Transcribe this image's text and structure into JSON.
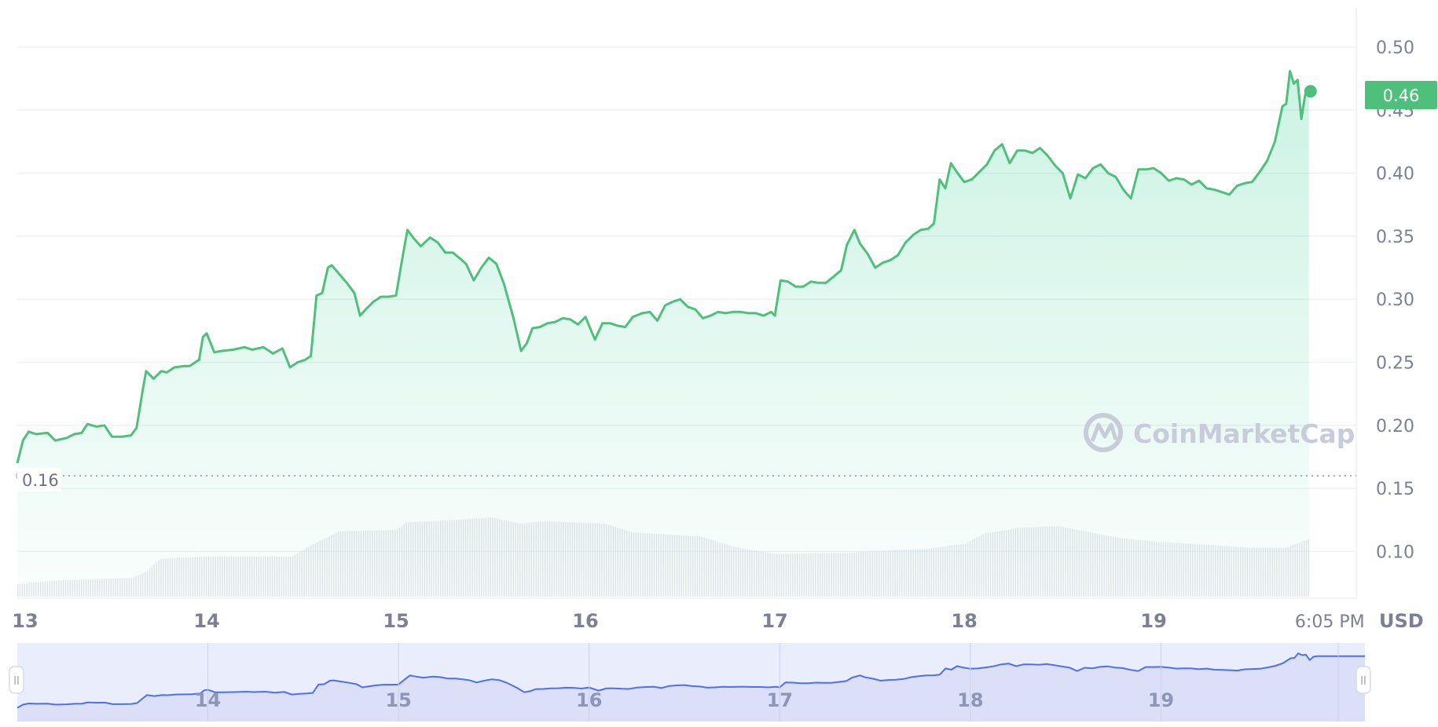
{
  "chart_data": {
    "type": "area",
    "currency": "USD",
    "current_price": "0.46",
    "base_price": "0.16",
    "watermark": "CoinMarketCap",
    "y_axis": {
      "min": 0.05,
      "max": 0.51,
      "ticks": [
        "0.50",
        "0.45",
        "0.40",
        "0.35",
        "0.30",
        "0.25",
        "0.20",
        "0.15",
        "0.10"
      ]
    },
    "x_axis": {
      "start": 13.0,
      "end": 20.07,
      "ticks": [
        {
          "value": 13,
          "label": "13"
        },
        {
          "value": 14,
          "label": "14"
        },
        {
          "value": 15,
          "label": "15"
        },
        {
          "value": 16,
          "label": "16"
        },
        {
          "value": 17,
          "label": "17"
        },
        {
          "value": 18,
          "label": "18"
        },
        {
          "value": 19,
          "label": "19"
        },
        {
          "value": 19.93,
          "label": "6:05 PM"
        }
      ]
    },
    "price": [
      [
        13.0,
        0.17
      ],
      [
        13.03,
        0.188
      ],
      [
        13.06,
        0.195
      ],
      [
        13.1,
        0.193
      ],
      [
        13.16,
        0.194
      ],
      [
        13.2,
        0.188
      ],
      [
        13.26,
        0.19
      ],
      [
        13.3,
        0.193
      ],
      [
        13.34,
        0.194
      ],
      [
        13.37,
        0.201
      ],
      [
        13.42,
        0.199
      ],
      [
        13.46,
        0.2
      ],
      [
        13.5,
        0.191
      ],
      [
        13.55,
        0.191
      ],
      [
        13.6,
        0.192
      ],
      [
        13.63,
        0.198
      ],
      [
        13.66,
        0.226
      ],
      [
        13.68,
        0.243
      ],
      [
        13.72,
        0.237
      ],
      [
        13.76,
        0.243
      ],
      [
        13.79,
        0.242
      ],
      [
        13.83,
        0.246
      ],
      [
        13.88,
        0.247
      ],
      [
        13.91,
        0.247
      ],
      [
        13.96,
        0.252
      ],
      [
        13.98,
        0.27
      ],
      [
        14.0,
        0.273
      ],
      [
        14.04,
        0.258
      ],
      [
        14.08,
        0.259
      ],
      [
        14.14,
        0.26
      ],
      [
        14.2,
        0.262
      ],
      [
        14.24,
        0.26
      ],
      [
        14.3,
        0.262
      ],
      [
        14.35,
        0.257
      ],
      [
        14.4,
        0.261
      ],
      [
        14.44,
        0.246
      ],
      [
        14.48,
        0.25
      ],
      [
        14.52,
        0.252
      ],
      [
        14.55,
        0.255
      ],
      [
        14.58,
        0.303
      ],
      [
        14.61,
        0.305
      ],
      [
        14.64,
        0.325
      ],
      [
        14.66,
        0.327
      ],
      [
        14.7,
        0.32
      ],
      [
        14.74,
        0.313
      ],
      [
        14.78,
        0.305
      ],
      [
        14.81,
        0.287
      ],
      [
        14.84,
        0.292
      ],
      [
        14.88,
        0.298
      ],
      [
        14.92,
        0.302
      ],
      [
        14.96,
        0.302
      ],
      [
        15.0,
        0.303
      ],
      [
        15.03,
        0.33
      ],
      [
        15.06,
        0.355
      ],
      [
        15.09,
        0.349
      ],
      [
        15.13,
        0.342
      ],
      [
        15.18,
        0.349
      ],
      [
        15.22,
        0.345
      ],
      [
        15.26,
        0.337
      ],
      [
        15.3,
        0.337
      ],
      [
        15.34,
        0.332
      ],
      [
        15.37,
        0.328
      ],
      [
        15.41,
        0.315
      ],
      [
        15.45,
        0.325
      ],
      [
        15.49,
        0.333
      ],
      [
        15.53,
        0.328
      ],
      [
        15.57,
        0.312
      ],
      [
        15.62,
        0.285
      ],
      [
        15.66,
        0.259
      ],
      [
        15.69,
        0.265
      ],
      [
        15.72,
        0.277
      ],
      [
        15.76,
        0.278
      ],
      [
        15.8,
        0.281
      ],
      [
        15.84,
        0.282
      ],
      [
        15.88,
        0.285
      ],
      [
        15.92,
        0.284
      ],
      [
        15.96,
        0.28
      ],
      [
        16.0,
        0.286
      ],
      [
        16.05,
        0.268
      ],
      [
        16.09,
        0.281
      ],
      [
        16.13,
        0.281
      ],
      [
        16.17,
        0.279
      ],
      [
        16.21,
        0.278
      ],
      [
        16.25,
        0.286
      ],
      [
        16.3,
        0.289
      ],
      [
        16.34,
        0.29
      ],
      [
        16.38,
        0.283
      ],
      [
        16.42,
        0.295
      ],
      [
        16.46,
        0.298
      ],
      [
        16.5,
        0.3
      ],
      [
        16.54,
        0.294
      ],
      [
        16.58,
        0.292
      ],
      [
        16.62,
        0.285
      ],
      [
        16.66,
        0.287
      ],
      [
        16.7,
        0.29
      ],
      [
        16.74,
        0.289
      ],
      [
        16.78,
        0.29
      ],
      [
        16.82,
        0.29
      ],
      [
        16.86,
        0.289
      ],
      [
        16.9,
        0.289
      ],
      [
        16.94,
        0.287
      ],
      [
        16.98,
        0.29
      ],
      [
        17.0,
        0.287
      ],
      [
        17.03,
        0.315
      ],
      [
        17.07,
        0.314
      ],
      [
        17.11,
        0.31
      ],
      [
        17.15,
        0.31
      ],
      [
        17.19,
        0.314
      ],
      [
        17.23,
        0.313
      ],
      [
        17.27,
        0.313
      ],
      [
        17.31,
        0.318
      ],
      [
        17.35,
        0.323
      ],
      [
        17.38,
        0.343
      ],
      [
        17.42,
        0.355
      ],
      [
        17.45,
        0.344
      ],
      [
        17.49,
        0.336
      ],
      [
        17.53,
        0.325
      ],
      [
        17.57,
        0.329
      ],
      [
        17.61,
        0.331
      ],
      [
        17.65,
        0.335
      ],
      [
        17.69,
        0.345
      ],
      [
        17.73,
        0.351
      ],
      [
        17.77,
        0.355
      ],
      [
        17.81,
        0.356
      ],
      [
        17.84,
        0.36
      ],
      [
        17.87,
        0.395
      ],
      [
        17.9,
        0.388
      ],
      [
        17.93,
        0.408
      ],
      [
        17.96,
        0.401
      ],
      [
        18.0,
        0.393
      ],
      [
        18.04,
        0.395
      ],
      [
        18.08,
        0.401
      ],
      [
        18.12,
        0.407
      ],
      [
        18.16,
        0.418
      ],
      [
        18.2,
        0.423
      ],
      [
        18.24,
        0.408
      ],
      [
        18.28,
        0.418
      ],
      [
        18.32,
        0.418
      ],
      [
        18.36,
        0.416
      ],
      [
        18.4,
        0.42
      ],
      [
        18.44,
        0.414
      ],
      [
        18.48,
        0.406
      ],
      [
        18.52,
        0.4
      ],
      [
        18.56,
        0.38
      ],
      [
        18.6,
        0.399
      ],
      [
        18.64,
        0.396
      ],
      [
        18.68,
        0.404
      ],
      [
        18.72,
        0.407
      ],
      [
        18.76,
        0.4
      ],
      [
        18.8,
        0.397
      ],
      [
        18.84,
        0.387
      ],
      [
        18.88,
        0.38
      ],
      [
        18.92,
        0.403
      ],
      [
        18.96,
        0.403
      ],
      [
        19.0,
        0.404
      ],
      [
        19.04,
        0.4
      ],
      [
        19.08,
        0.394
      ],
      [
        19.12,
        0.396
      ],
      [
        19.16,
        0.395
      ],
      [
        19.2,
        0.391
      ],
      [
        19.24,
        0.394
      ],
      [
        19.28,
        0.388
      ],
      [
        19.32,
        0.387
      ],
      [
        19.36,
        0.385
      ],
      [
        19.4,
        0.383
      ],
      [
        19.44,
        0.39
      ],
      [
        19.48,
        0.392
      ],
      [
        19.52,
        0.393
      ],
      [
        19.56,
        0.401
      ],
      [
        19.6,
        0.41
      ],
      [
        19.64,
        0.425
      ],
      [
        19.68,
        0.453
      ],
      [
        19.7,
        0.455
      ],
      [
        19.72,
        0.481
      ],
      [
        19.74,
        0.471
      ],
      [
        19.76,
        0.474
      ],
      [
        19.78,
        0.443
      ],
      [
        19.8,
        0.462
      ],
      [
        19.82,
        0.465
      ]
    ],
    "volume": [
      [
        13.0,
        0.074
      ],
      [
        13.2,
        0.077
      ],
      [
        13.4,
        0.078
      ],
      [
        13.6,
        0.079
      ],
      [
        13.68,
        0.084
      ],
      [
        13.75,
        0.094
      ],
      [
        14.0,
        0.096
      ],
      [
        14.2,
        0.096
      ],
      [
        14.45,
        0.096
      ],
      [
        14.55,
        0.105
      ],
      [
        14.7,
        0.116
      ],
      [
        15.0,
        0.117
      ],
      [
        15.05,
        0.123
      ],
      [
        15.2,
        0.124
      ],
      [
        15.5,
        0.127
      ],
      [
        15.65,
        0.122
      ],
      [
        15.8,
        0.124
      ],
      [
        16.1,
        0.122
      ],
      [
        16.25,
        0.115
      ],
      [
        16.6,
        0.112
      ],
      [
        16.8,
        0.103
      ],
      [
        17.0,
        0.098
      ],
      [
        17.4,
        0.099
      ],
      [
        17.6,
        0.101
      ],
      [
        17.8,
        0.102
      ],
      [
        18.0,
        0.106
      ],
      [
        18.1,
        0.114
      ],
      [
        18.3,
        0.119
      ],
      [
        18.5,
        0.12
      ],
      [
        18.7,
        0.114
      ],
      [
        18.85,
        0.11
      ],
      [
        19.0,
        0.108
      ],
      [
        19.2,
        0.106
      ],
      [
        19.5,
        0.103
      ],
      [
        19.7,
        0.103
      ],
      [
        19.82,
        0.11
      ]
    ],
    "navigator": {
      "labels": [
        "14",
        "15",
        "16",
        "17",
        "18",
        "19"
      ]
    }
  }
}
